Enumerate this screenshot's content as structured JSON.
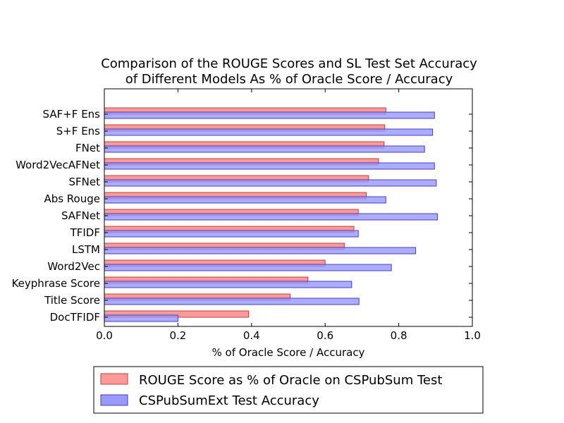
{
  "chart_data": {
    "type": "bar",
    "orientation": "horizontal",
    "title_lines": [
      "Comparison of the ROUGE Scores and SL Test Set Accuracy",
      "of Different Models As % of Oracle Score / Accuracy"
    ],
    "xlabel": "% of Oracle Score / Accuracy",
    "ylabel": "",
    "xlim": [
      0.0,
      1.0
    ],
    "xticks": [
      "0.0",
      "0.2",
      "0.4",
      "0.6",
      "0.8",
      "1.0"
    ],
    "categories": [
      "SAF+F Ens",
      "S+F Ens",
      "FNet",
      "Word2VecAFNet",
      "SFNet",
      "Abs Rouge",
      "SAFNet",
      "TFIDF",
      "LSTM",
      "Word2Vec",
      "Keyphrase Score",
      "Title Score",
      "DocTFIDF"
    ],
    "series": [
      {
        "name": "ROUGE Score as % of Oracle on CSPubSum Test",
        "color": "#ff9999",
        "edge": "#c04040",
        "values": [
          0.765,
          0.762,
          0.76,
          0.745,
          0.718,
          0.712,
          0.69,
          0.678,
          0.652,
          0.6,
          0.553,
          0.505,
          0.392
        ]
      },
      {
        "name": "CSPubSumExt Test Accuracy",
        "color": "#9999ff",
        "edge": "#4040c0",
        "values": [
          0.897,
          0.892,
          0.87,
          0.897,
          0.902,
          0.765,
          0.905,
          0.69,
          0.846,
          0.78,
          0.672,
          0.692,
          0.2
        ]
      }
    ],
    "legend_position": "bottom"
  }
}
